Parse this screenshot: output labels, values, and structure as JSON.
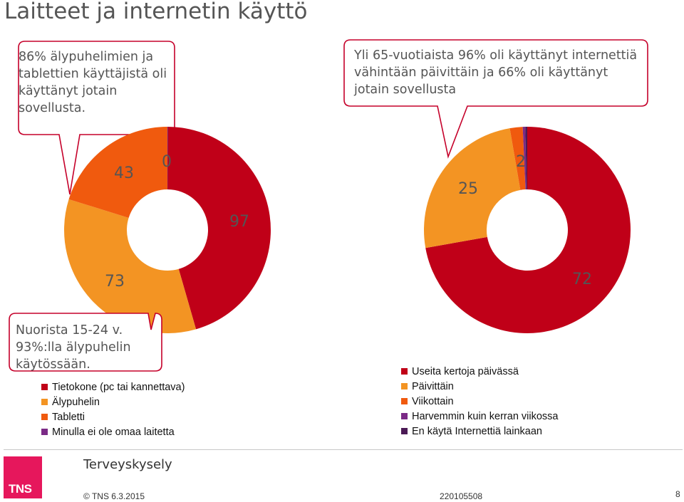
{
  "title": "Laitteet ja internetin käyttö",
  "callouts": {
    "left": "86% älypuhelimien ja tablettien käyttäjistä oli käyttänyt jotain sovellusta.",
    "right": "Yli 65-vuotiaista 96% oli käyttänyt internettiä vähintään päivittäin ja 66% oli käyttänyt jotain sovellusta",
    "bottom": "Nuorista 15-24 v. 93%:lla älypuhelin käytössään."
  },
  "chart_data": [
    {
      "type": "pie",
      "variant": "donut",
      "series": [
        {
          "name": "Tietokone (pc tai kannettava)",
          "value": 97,
          "color": "#c00018"
        },
        {
          "name": "Älypuhelin",
          "value": 73,
          "color": "#f39423"
        },
        {
          "name": "Tabletti",
          "value": 43,
          "color": "#f05a0e"
        },
        {
          "name": "Minulla ei ole omaa laitetta",
          "value": 0,
          "color": "#7b2a86"
        }
      ],
      "labels": [
        "97",
        "73",
        "43",
        "0"
      ]
    },
    {
      "type": "pie",
      "variant": "donut",
      "series": [
        {
          "name": "Useita kertoja päivässä",
          "value": 72,
          "color": "#c00018"
        },
        {
          "name": "Päivittäin",
          "value": 25,
          "color": "#f39423"
        },
        {
          "name": "Viikottain",
          "value": 2,
          "color": "#f05a0e"
        },
        {
          "name": "Harvemmin kuin kerran viikossa",
          "value": 0.4,
          "color": "#7b2a86"
        },
        {
          "name": "En käytä Internettiä lainkaan",
          "value": 0.3,
          "color": "#4b1a55"
        }
      ],
      "labels": [
        "72",
        "25",
        "2"
      ]
    }
  ],
  "footer": {
    "survey": "Terveyskysely",
    "copyright": "© TNS 6.3.2015",
    "code": "220105508",
    "page": "8",
    "logo_text": "TNS"
  }
}
